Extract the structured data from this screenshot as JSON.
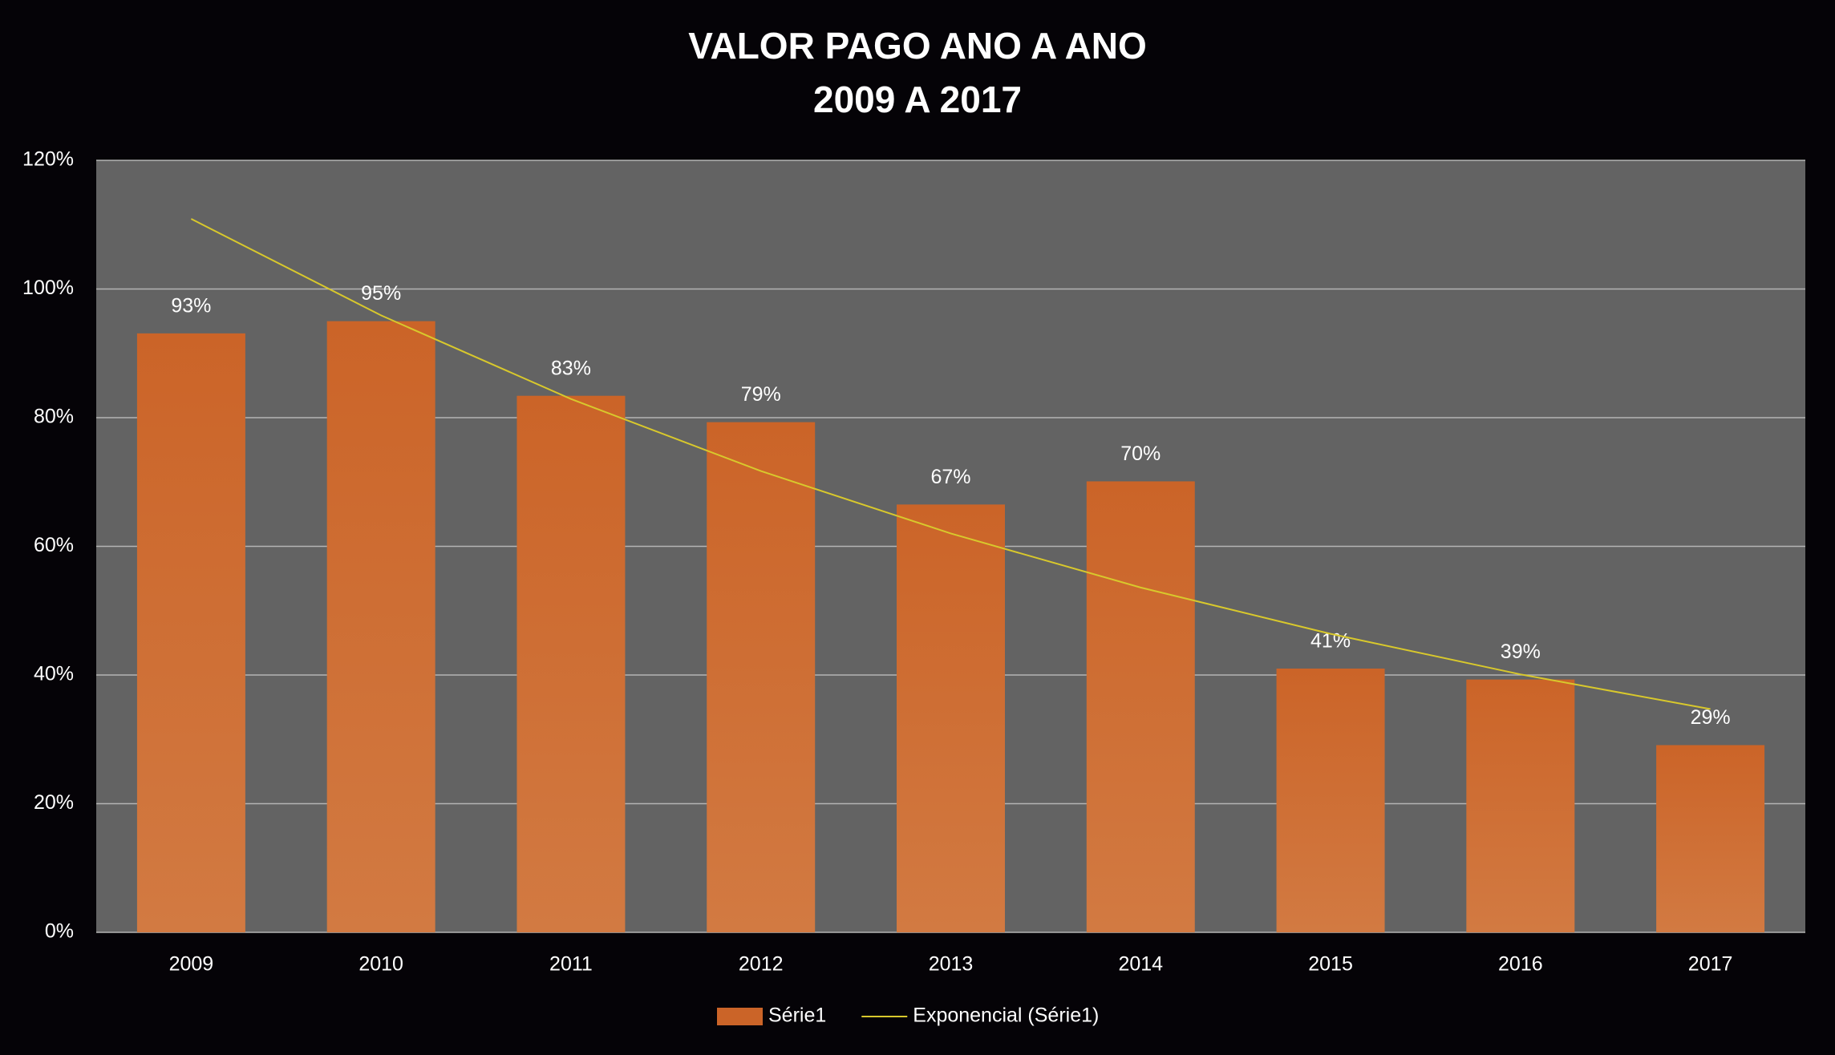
{
  "chart_data": {
    "type": "bar",
    "title": [
      "VALOR PAGO ANO A ANO",
      "2009 A 2017"
    ],
    "categories": [
      "2009",
      "2010",
      "2011",
      "2012",
      "2013",
      "2014",
      "2015",
      "2016",
      "2017"
    ],
    "series": [
      {
        "name": "Série1",
        "color": "#cb6428",
        "values": [
          93.1,
          95,
          83.4,
          79.3,
          66.5,
          70.1,
          41,
          39.3,
          29.1
        ],
        "value_labels": [
          "93%",
          "95%",
          "83%",
          "79%",
          "67%",
          "70%",
          "41%",
          "39%",
          "29%"
        ]
      },
      {
        "name": "Exponencial (Série1)",
        "type": "line",
        "color": "#d8c82c",
        "values": [
          110.9,
          95.9,
          82.9,
          71.7,
          62.0,
          53.6,
          46.4,
          40.1,
          34.7
        ]
      }
    ],
    "ylim": [
      0,
      120
    ],
    "yticks": [
      {
        "value": 0,
        "label": "0%"
      },
      {
        "value": 20,
        "label": "20%"
      },
      {
        "value": 40,
        "label": "40%"
      },
      {
        "value": 60,
        "label": "60%"
      },
      {
        "value": 80,
        "label": "80%"
      },
      {
        "value": 100,
        "label": "100%"
      },
      {
        "value": 120,
        "label": "120%"
      }
    ],
    "grid": true,
    "legend": "bottom"
  }
}
